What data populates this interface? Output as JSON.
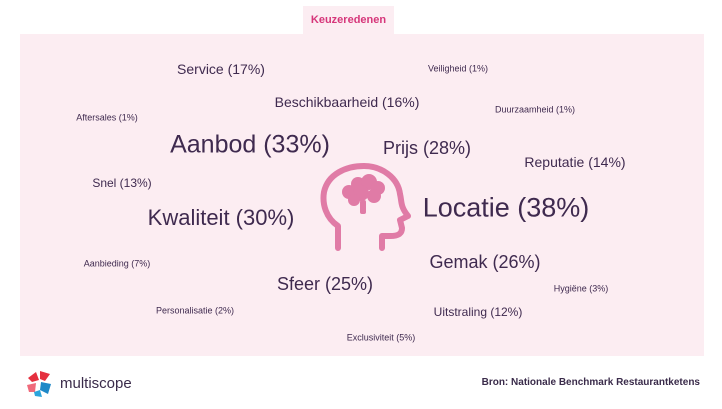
{
  "header": {
    "title": "Keuzeredenen"
  },
  "words": {
    "service": "Service (17%)",
    "veiligheid": "Veiligheid (1%)",
    "beschikbaarheid": "Beschikbaarheid (16%)",
    "aftersales": "Aftersales (1%)",
    "duurzaamheid": "Duurzaamheid (1%)",
    "aanbod": "Aanbod (33%)",
    "prijs": "Prijs (28%)",
    "reputatie": "Reputatie (14%)",
    "snel": "Snel (13%)",
    "locatie": "Locatie (38%)",
    "kwaliteit": "Kwaliteit (30%)",
    "gemak": "Gemak (26%)",
    "aanbieding": "Aanbieding (7%)",
    "sfeer": "Sfeer (25%)",
    "hygiene": "Hygiëne (3%)",
    "personalisatie": "Personalisatie (2%)",
    "uitstraling": "Uitstraling (12%)",
    "exclusiviteit": "Exclusiviteit (5%)"
  },
  "colors": {
    "accent": "#d6367a",
    "icon": "#e07ba6",
    "text": "#3f2a4f",
    "panel": "#fcedf2"
  },
  "icons": {
    "center": "head-brain-icon",
    "logo": "multiscope-logo-icon"
  },
  "footer": {
    "brand": "multiscope",
    "source": "Bron: Nationale Benchmark Restaurantketens"
  }
}
